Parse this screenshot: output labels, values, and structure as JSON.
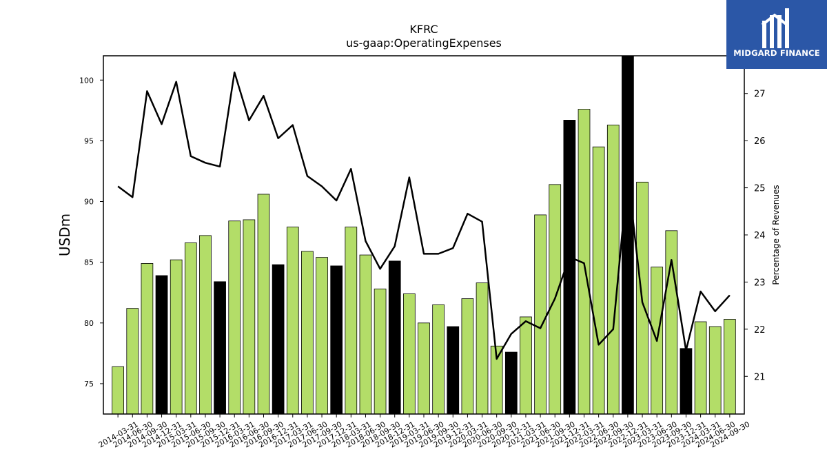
{
  "chart_data": {
    "type": "bar",
    "title": "KFRC",
    "subtitle": "us-gaap:OperatingExpenses",
    "ylabel": "USDm",
    "y2label": "Percentage of Revenues",
    "ylim": [
      72.5,
      102
    ],
    "y2lim": [
      20.2,
      27.8
    ],
    "yticks": [
      75,
      80,
      85,
      90,
      95,
      100
    ],
    "y2ticks": [
      21,
      22,
      23,
      24,
      25,
      26,
      27
    ],
    "categories": [
      "2014-03-31",
      "2014-06-30",
      "2014-09-30",
      "2014-12-31",
      "2015-03-31",
      "2015-06-30",
      "2015-09-30",
      "2015-12-31",
      "2016-03-31",
      "2016-06-30",
      "2016-09-30",
      "2016-12-31",
      "2017-03-31",
      "2017-06-30",
      "2017-09-30",
      "2017-12-31",
      "2018-03-31",
      "2018-06-30",
      "2018-09-30",
      "2018-12-31",
      "2019-03-31",
      "2019-06-30",
      "2019-09-30",
      "2019-12-31",
      "2020-03-31",
      "2020-06-30",
      "2020-09-30",
      "2020-12-31",
      "2021-03-31",
      "2021-06-30",
      "2021-09-30",
      "2021-12-31",
      "2022-03-31",
      "2022-06-30",
      "2022-09-30",
      "2022-12-31",
      "2023-03-31",
      "2023-06-30",
      "2023-09-30",
      "2023-12-31",
      "2024-03-31",
      "2024-06-30",
      "2024-09-30"
    ],
    "series": [
      {
        "type": "bar",
        "axis": "left",
        "values": [
          76.4,
          81.2,
          84.9,
          83.9,
          85.2,
          86.6,
          87.2,
          83.4,
          88.4,
          88.5,
          90.6,
          84.8,
          87.9,
          85.9,
          85.4,
          84.7,
          87.9,
          85.6,
          82.8,
          85.1,
          82.4,
          80.0,
          81.5,
          79.7,
          82.0,
          83.3,
          78.1,
          77.6,
          80.5,
          88.9,
          91.4,
          96.7,
          97.6,
          94.5,
          96.3,
          102.0,
          91.6,
          84.6,
          87.6,
          77.9,
          80.1,
          79.7,
          80.3
        ],
        "colors": [
          "#b3dd68",
          "#b3dd68",
          "#b3dd68",
          "#000000",
          "#b3dd68",
          "#b3dd68",
          "#b3dd68",
          "#000000",
          "#b3dd68",
          "#b3dd68",
          "#b3dd68",
          "#000000",
          "#b3dd68",
          "#b3dd68",
          "#b3dd68",
          "#000000",
          "#b3dd68",
          "#b3dd68",
          "#b3dd68",
          "#000000",
          "#b3dd68",
          "#b3dd68",
          "#b3dd68",
          "#000000",
          "#b3dd68",
          "#b3dd68",
          "#b3dd68",
          "#000000",
          "#b3dd68",
          "#b3dd68",
          "#b3dd68",
          "#000000",
          "#b3dd68",
          "#b3dd68",
          "#b3dd68",
          "#000000",
          "#b3dd68",
          "#b3dd68",
          "#b3dd68",
          "#000000",
          "#b3dd68",
          "#b3dd68",
          "#b3dd68"
        ]
      },
      {
        "type": "line",
        "axis": "right",
        "color": "#000000",
        "values": [
          25.03,
          24.8,
          27.05,
          26.35,
          27.25,
          25.67,
          25.53,
          25.45,
          27.45,
          26.43,
          26.95,
          26.05,
          26.33,
          25.25,
          25.03,
          24.73,
          25.4,
          23.87,
          23.28,
          23.76,
          25.22,
          23.6,
          23.6,
          23.72,
          24.45,
          24.28,
          21.37,
          21.9,
          22.17,
          22.02,
          22.65,
          23.53,
          23.4,
          21.67,
          22.0,
          25.28,
          22.57,
          21.75,
          23.47,
          21.55,
          22.8,
          22.38,
          22.72
        ]
      }
    ],
    "grid": false
  },
  "logo": {
    "text": "MIDGARD FINANCE"
  }
}
